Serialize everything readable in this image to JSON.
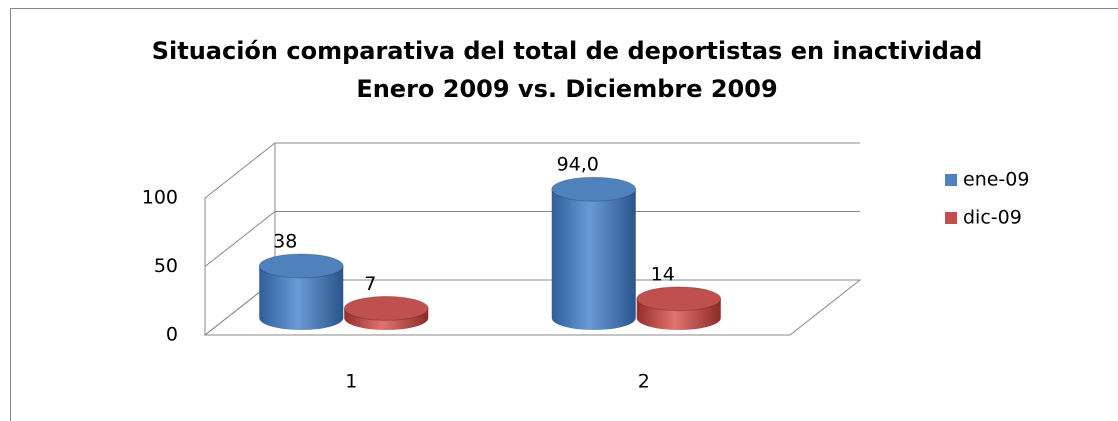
{
  "chart_data": {
    "type": "bar3d",
    "title": "Situación comparativa del total de deportistas en inactividad",
    "subtitle": "Enero 2009 vs. Diciembre 2009",
    "categories": [
      "1",
      "2"
    ],
    "series": [
      {
        "name": "ene-09",
        "color": "#4f81bd",
        "values": [
          38,
          94.0
        ],
        "value_labels": [
          "38",
          "94,0"
        ]
      },
      {
        "name": "dic-09",
        "color": "#c0504d",
        "values": [
          7,
          14
        ]
      }
    ],
    "ylim": [
      0,
      100
    ],
    "yticks": [
      0,
      50,
      100
    ],
    "grid": true,
    "legend": "right"
  }
}
